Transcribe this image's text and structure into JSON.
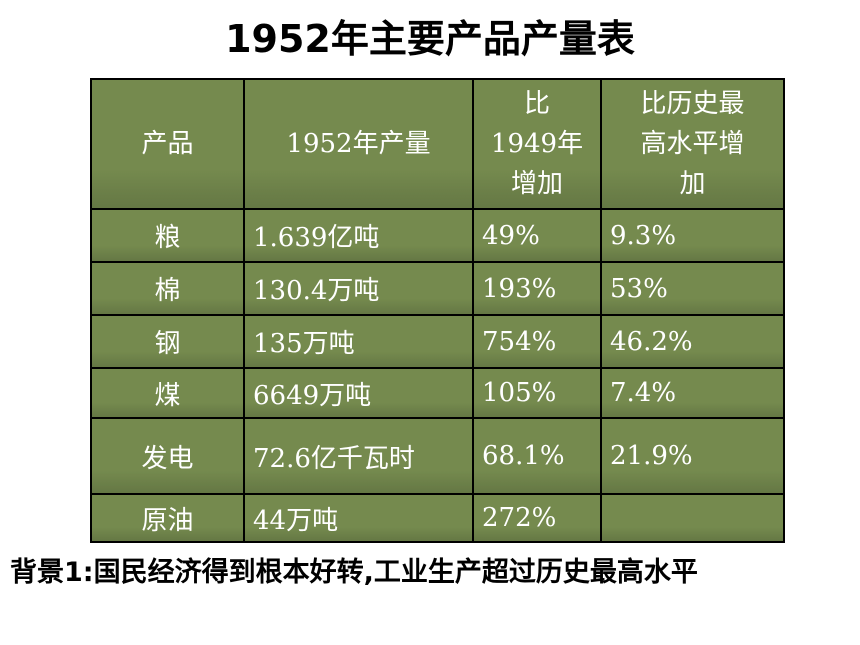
{
  "title": "1952年主要产品产量表",
  "table": {
    "headers": [
      [
        "产品"
      ],
      [
        "1952年产量"
      ],
      [
        "比",
        "1949年",
        "增加"
      ],
      [
        "比历史最",
        "高水平增",
        "加"
      ]
    ],
    "rows": [
      {
        "product": "粮",
        "output": "1.639亿吨",
        "vs1949": "49%",
        "vsHistoric": "9.3%"
      },
      {
        "product": "棉",
        "output": "130.4万吨",
        "vs1949": "193%",
        "vsHistoric": "53%"
      },
      {
        "product": "钢",
        "output": "135万吨",
        "vs1949": "754%",
        "vsHistoric": "46.2%"
      },
      {
        "product": "煤",
        "output": "6649万吨",
        "vs1949": "105%",
        "vsHistoric": "7.4%"
      },
      {
        "product": "发电",
        "output": "72.6亿千瓦时",
        "vs1949": "68.1%",
        "vsHistoric": "21.9%"
      },
      {
        "product": "原油",
        "output": "44万吨",
        "vs1949": "272%",
        "vsHistoric": ""
      }
    ]
  },
  "caption": "背景1:国民经济得到根本好转,工业生产超过历史最高水平",
  "colors": {
    "cell_background": "#758a4e",
    "cell_text": "#ffffff",
    "border": "#000000"
  }
}
